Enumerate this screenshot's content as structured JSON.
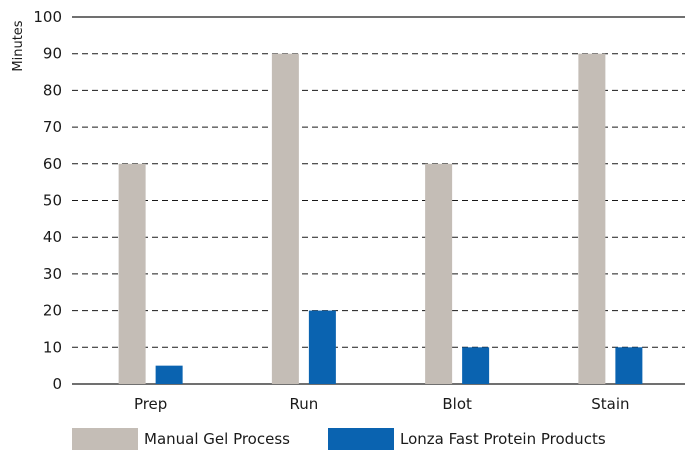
{
  "chart_data": {
    "type": "bar",
    "title": "",
    "xlabel": "",
    "ylabel": "Minutes",
    "ylim": [
      0,
      100
    ],
    "yticks": [
      0,
      10,
      20,
      30,
      40,
      50,
      60,
      70,
      80,
      90,
      100
    ],
    "grid": "dashed horizontal",
    "legend_position": "bottom",
    "categories": [
      "Prep",
      "Run",
      "Blot",
      "Stain"
    ],
    "series": [
      {
        "name": "Manual Gel Process",
        "color": "#c4bdb6",
        "values": [
          60,
          90,
          60,
          90
        ]
      },
      {
        "name": "Lonza Fast Protein Products",
        "color": "#0a63b0",
        "values": [
          5,
          20,
          10,
          10
        ]
      }
    ]
  }
}
